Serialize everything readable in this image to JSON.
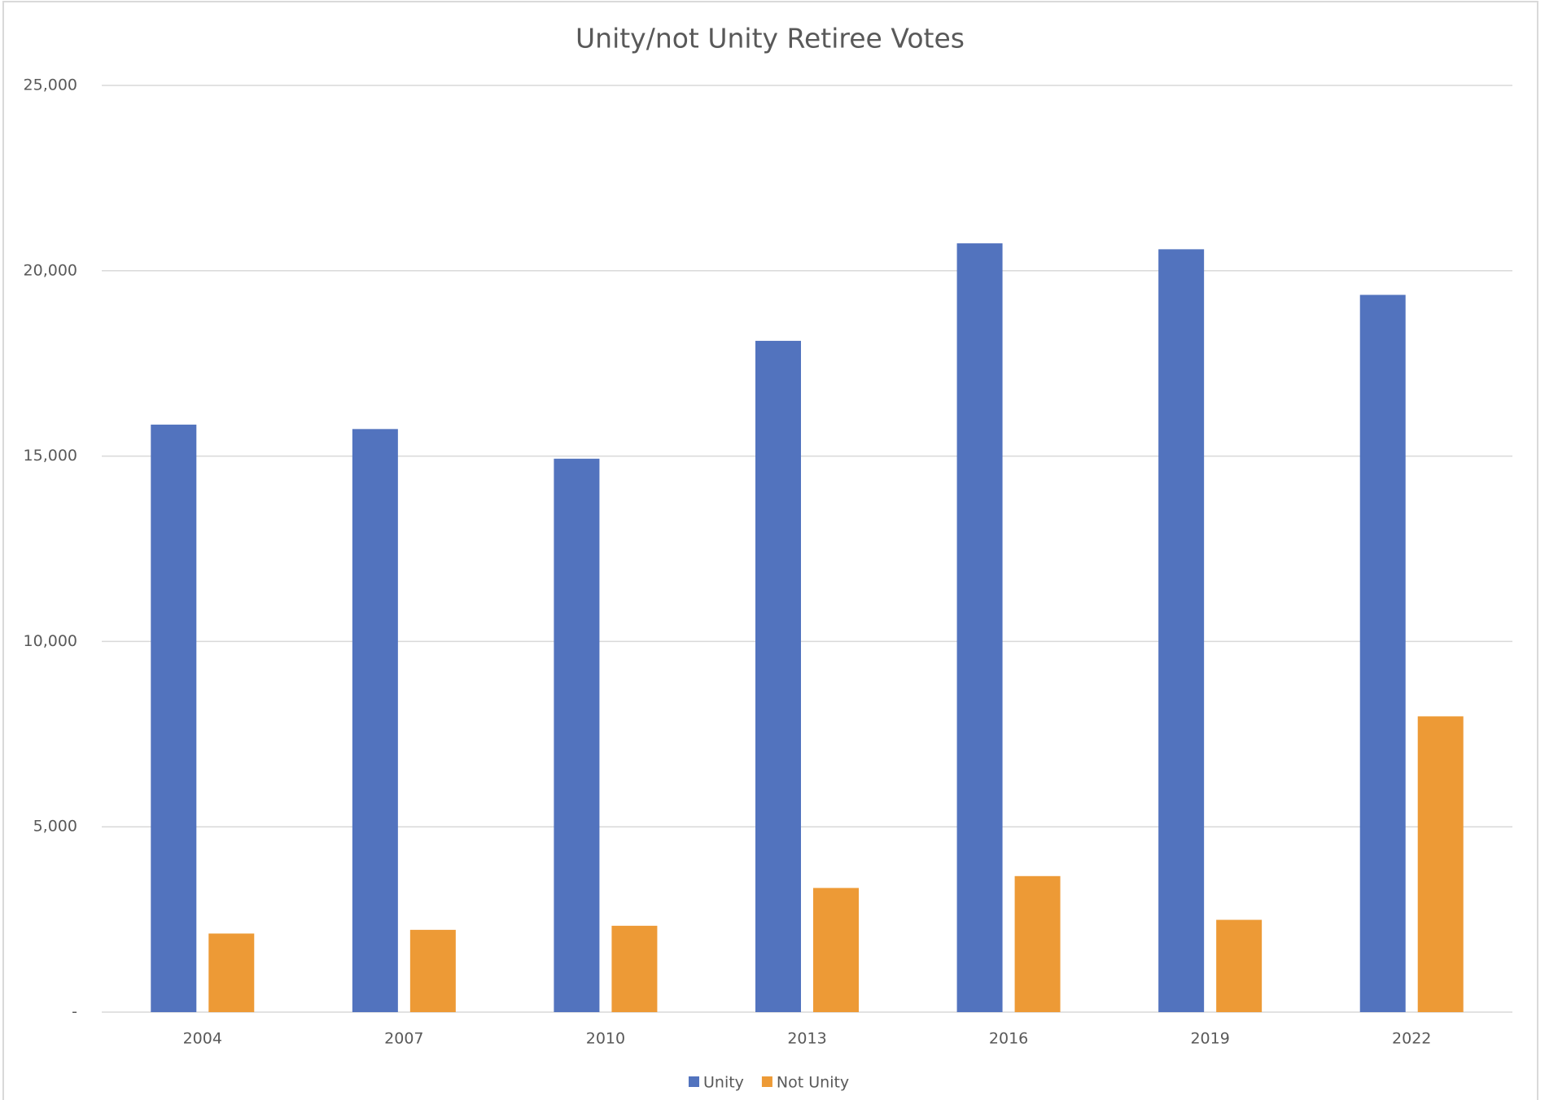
{
  "chart_data": {
    "type": "bar",
    "title": "Unity/not Unity Retiree Votes",
    "categories": [
      "2004",
      "2007",
      "2010",
      "2013",
      "2016",
      "2019",
      "2022"
    ],
    "series": [
      {
        "name": "Unity",
        "color": "#5273be",
        "values": [
          15850,
          15730,
          14930,
          18110,
          20740,
          20580,
          19350
        ]
      },
      {
        "name": "Not Unity",
        "color": "#ed9a36",
        "values": [
          2120,
          2220,
          2330,
          3350,
          3670,
          2490,
          7980
        ]
      }
    ],
    "ylim": [
      0,
      25000
    ],
    "yticks": [
      {
        "value": 0,
        "label": "-"
      },
      {
        "value": 5000,
        "label": "5,000"
      },
      {
        "value": 10000,
        "label": "10,000"
      },
      {
        "value": 15000,
        "label": "15,000"
      },
      {
        "value": 20000,
        "label": "20,000"
      },
      {
        "value": 25000,
        "label": "25,000"
      }
    ],
    "grid": true,
    "legend": "bottom"
  }
}
